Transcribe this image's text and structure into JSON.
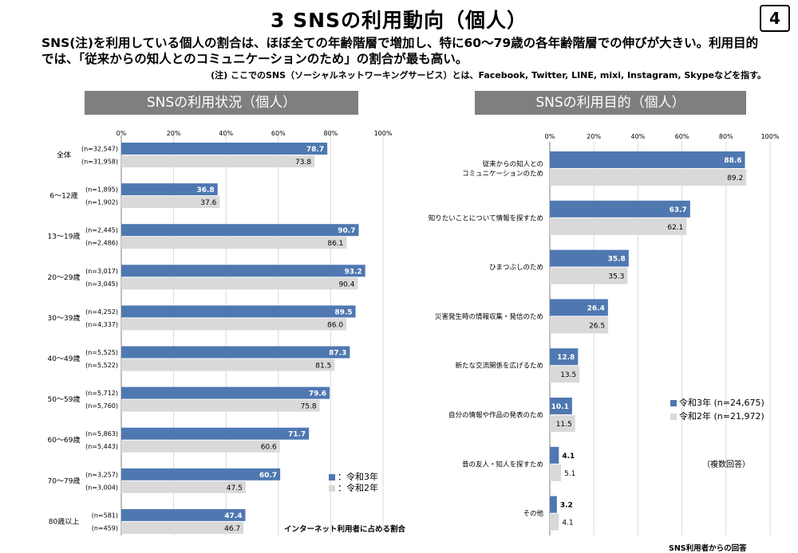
{
  "page": {
    "title": "3  SNSの利用動向（個人）",
    "page_number": "4",
    "lead_line1": "SNS(注)を利用している個人の割合は、ほぼ全ての年齢階層で増加し、特に60～79歳の各年齢階層での伸びが大きい。利用目的",
    "lead_line2": "では、「従来からの知人とのコミュニケーションのため」の割合が最も高い。",
    "note": "(注) ここでのSNS（ソーシャルネットワーキングサービス）とは、Facebook, Twitter, LINE, mixi, Instagram, Skypeなどを指す。"
  },
  "colors": {
    "r3": "#4f78b1",
    "r2": "#d9d9d9",
    "header_bg": "#7f7f7f"
  },
  "left_panel": {
    "header": "SNSの利用状況（個人）",
    "legend": [
      "：令和3年",
      "：令和2年"
    ],
    "footnote": "インターネット利用者に占める割合"
  },
  "right_panel": {
    "header": "SNSの利用目的（個人）",
    "legend": [
      "令和3年 (n=24,675)",
      "令和2年 (n=21,972)"
    ],
    "multi_note": "（複数回答）",
    "footnote": "SNS利用者からの回答"
  },
  "chart_data": [
    {
      "type": "bar",
      "orientation": "horizontal",
      "title": "SNSの利用状況（個人）",
      "xlim": [
        0,
        100
      ],
      "ticks": [
        "0%",
        "20%",
        "40%",
        "60%",
        "80%",
        "100%"
      ],
      "categories": [
        "全体",
        "6～12歳",
        "13～19歳",
        "20～29歳",
        "30～39歳",
        "40～49歳",
        "50～59歳",
        "60～69歳",
        "70～79歳",
        "80歳以上"
      ],
      "series": [
        {
          "name": "令和3年",
          "values": [
            78.7,
            36.8,
            90.7,
            93.2,
            89.5,
            87.3,
            79.6,
            71.7,
            60.7,
            47.4
          ],
          "n": [
            "(n=32,547)",
            "(n=1,895)",
            "(n=2,445)",
            "(n=3,017)",
            "(n=4,252)",
            "(n=5,525)",
            "(n=5,712)",
            "(n=5,863)",
            "(n=3,257)",
            "(n=581)"
          ]
        },
        {
          "name": "令和2年",
          "values": [
            73.8,
            37.6,
            86.1,
            90.4,
            86.0,
            81.5,
            75.8,
            60.6,
            47.5,
            46.7
          ],
          "n": [
            "(n=31,958)",
            "(n=1,902)",
            "(n=2,486)",
            "(n=3,045)",
            "(n=4,337)",
            "(n=5,522)",
            "(n=5,760)",
            "(n=5,443)",
            "(n=3,004)",
            "(n=459)"
          ]
        }
      ]
    },
    {
      "type": "bar",
      "orientation": "horizontal",
      "title": "SNSの利用目的（個人）",
      "xlim": [
        0,
        100
      ],
      "ticks": [
        "0%",
        "20%",
        "40%",
        "60%",
        "80%",
        "100%"
      ],
      "categories": [
        [
          "従来からの知人との",
          "コミュニケーションのため"
        ],
        [
          "知りたいことについて情報を探すため"
        ],
        [
          "ひまつぶしのため"
        ],
        [
          "災害発生時の情報収集・発信のため"
        ],
        [
          "新たな交流関係を広げるため"
        ],
        [
          "自分の情報や作品の発表のため"
        ],
        [
          "昔の友人・知人を探すため"
        ],
        [
          "その他"
        ]
      ],
      "series": [
        {
          "name": "令和3年 (n=24,675)",
          "values": [
            88.6,
            63.7,
            35.8,
            26.4,
            12.8,
            10.1,
            4.1,
            3.2
          ]
        },
        {
          "name": "令和2年 (n=21,972)",
          "values": [
            89.2,
            62.1,
            35.3,
            26.5,
            13.5,
            11.5,
            5.1,
            4.1
          ]
        }
      ]
    }
  ]
}
